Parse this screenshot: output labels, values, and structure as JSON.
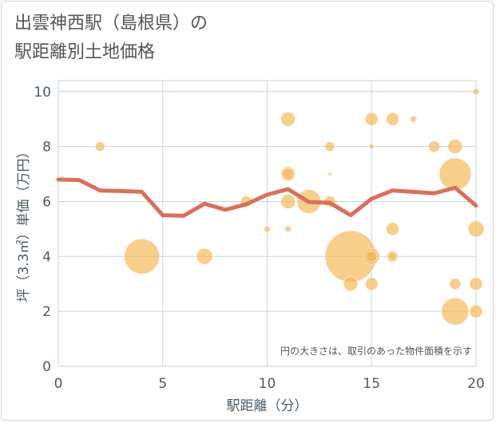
{
  "title_lines": [
    "出雲神西駅（島根県）の",
    "駅距離別土地価格"
  ],
  "chart_data": {
    "type": "scatter",
    "xlabel": "駅距離（分）",
    "ylabel": "坪（3.3㎡）単価（万円）",
    "xlim": [
      0,
      20
    ],
    "ylim": [
      0,
      10.4
    ],
    "xticks": [
      0,
      5,
      10,
      15,
      20
    ],
    "yticks": [
      0,
      2,
      4,
      6,
      8,
      10
    ],
    "grid": true,
    "annotation": "円の大きさは、取引のあった物件面積を示す",
    "colors": {
      "bubble": "#f5b95a",
      "line": "#d9705a",
      "grid": "#c8d3e0",
      "axis_text": "#4a5a6a"
    },
    "bubbles": [
      {
        "x": 2,
        "y": 8,
        "s": 6
      },
      {
        "x": 4,
        "y": 4,
        "s": 22
      },
      {
        "x": 7,
        "y": 4,
        "s": 10
      },
      {
        "x": 9,
        "y": 6,
        "s": 7
      },
      {
        "x": 10,
        "y": 5,
        "s": 4
      },
      {
        "x": 11,
        "y": 9,
        "s": 9
      },
      {
        "x": 11,
        "y": 7,
        "s": 9
      },
      {
        "x": 11,
        "y": 7,
        "s": 7
      },
      {
        "x": 11,
        "y": 6,
        "s": 9
      },
      {
        "x": 11,
        "y": 5,
        "s": 4
      },
      {
        "x": 12,
        "y": 6,
        "s": 15
      },
      {
        "x": 13,
        "y": 8,
        "s": 6
      },
      {
        "x": 13,
        "y": 7,
        "s": 2
      },
      {
        "x": 13,
        "y": 6,
        "s": 7
      },
      {
        "x": 14,
        "y": 4,
        "s": 32
      },
      {
        "x": 14,
        "y": 3,
        "s": 9
      },
      {
        "x": 15,
        "y": 9,
        "s": 8
      },
      {
        "x": 15,
        "y": 8,
        "s": 3
      },
      {
        "x": 15,
        "y": 4,
        "s": 10
      },
      {
        "x": 15,
        "y": 4,
        "s": 7
      },
      {
        "x": 15,
        "y": 3,
        "s": 8
      },
      {
        "x": 16,
        "y": 9,
        "s": 8
      },
      {
        "x": 16,
        "y": 5,
        "s": 8
      },
      {
        "x": 16,
        "y": 4,
        "s": 7
      },
      {
        "x": 16,
        "y": 4,
        "s": 5
      },
      {
        "x": 17,
        "y": 9,
        "s": 4
      },
      {
        "x": 18,
        "y": 8,
        "s": 7
      },
      {
        "x": 19,
        "y": 8,
        "s": 9
      },
      {
        "x": 19,
        "y": 7,
        "s": 20
      },
      {
        "x": 19,
        "y": 3,
        "s": 7
      },
      {
        "x": 19,
        "y": 2,
        "s": 17
      },
      {
        "x": 20,
        "y": 10,
        "s": 4
      },
      {
        "x": 20,
        "y": 5,
        "s": 10
      },
      {
        "x": 20,
        "y": 3,
        "s": 8
      },
      {
        "x": 20,
        "y": 2,
        "s": 8
      }
    ],
    "series": [
      {
        "x": [
          0,
          1,
          2,
          3,
          4,
          5,
          6,
          7,
          8,
          9,
          10,
          11,
          12,
          13,
          14,
          15,
          16,
          17,
          18,
          19,
          20
        ],
        "values": [
          6.8,
          6.78,
          6.4,
          6.38,
          6.35,
          5.5,
          5.48,
          5.92,
          5.7,
          5.9,
          6.25,
          6.45,
          5.98,
          5.95,
          5.5,
          6.1,
          6.4,
          6.35,
          6.3,
          6.5,
          5.85
        ]
      }
    ]
  }
}
